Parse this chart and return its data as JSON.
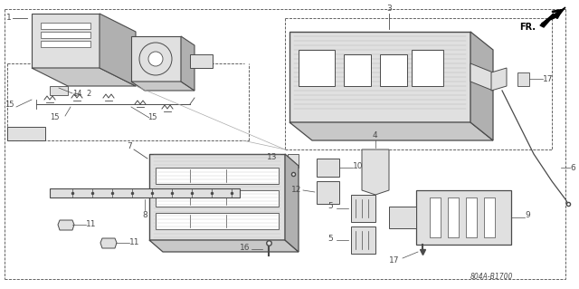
{
  "bg_color": "#ffffff",
  "line_color": "#4a4a4a",
  "part_code": "804A-B1700",
  "direction_label": "FR.",
  "gray_fill": "#c8c8c8",
  "light_gray": "#e0e0e0",
  "dark_gray": "#888888",
  "mid_gray": "#b0b0b0"
}
